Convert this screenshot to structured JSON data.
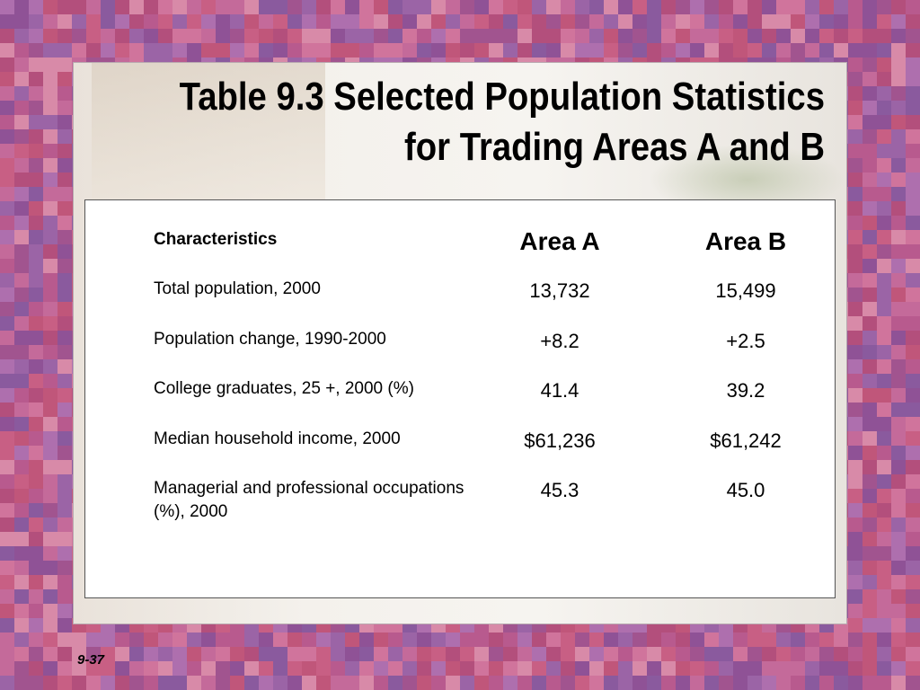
{
  "slide": {
    "title": "Table 9.3 Selected Population Statistics for Trading Areas A and B",
    "table": {
      "header": [
        "Characteristics",
        "Area A",
        "Area B"
      ],
      "rows": [
        [
          "Total population, 2000",
          "13,732",
          "15,499"
        ],
        [
          "Population change, 1990-2000",
          "+8.2",
          "+2.5"
        ],
        [
          "College graduates, 25 +, 2000 (%)",
          "41.4",
          "39.2"
        ],
        [
          "Median household income, 2000",
          "$61,236",
          "$61,242"
        ],
        [
          "Managerial and professional occupations (%), 2000",
          "45.3",
          "45.0"
        ]
      ]
    },
    "footer": "9-37"
  }
}
